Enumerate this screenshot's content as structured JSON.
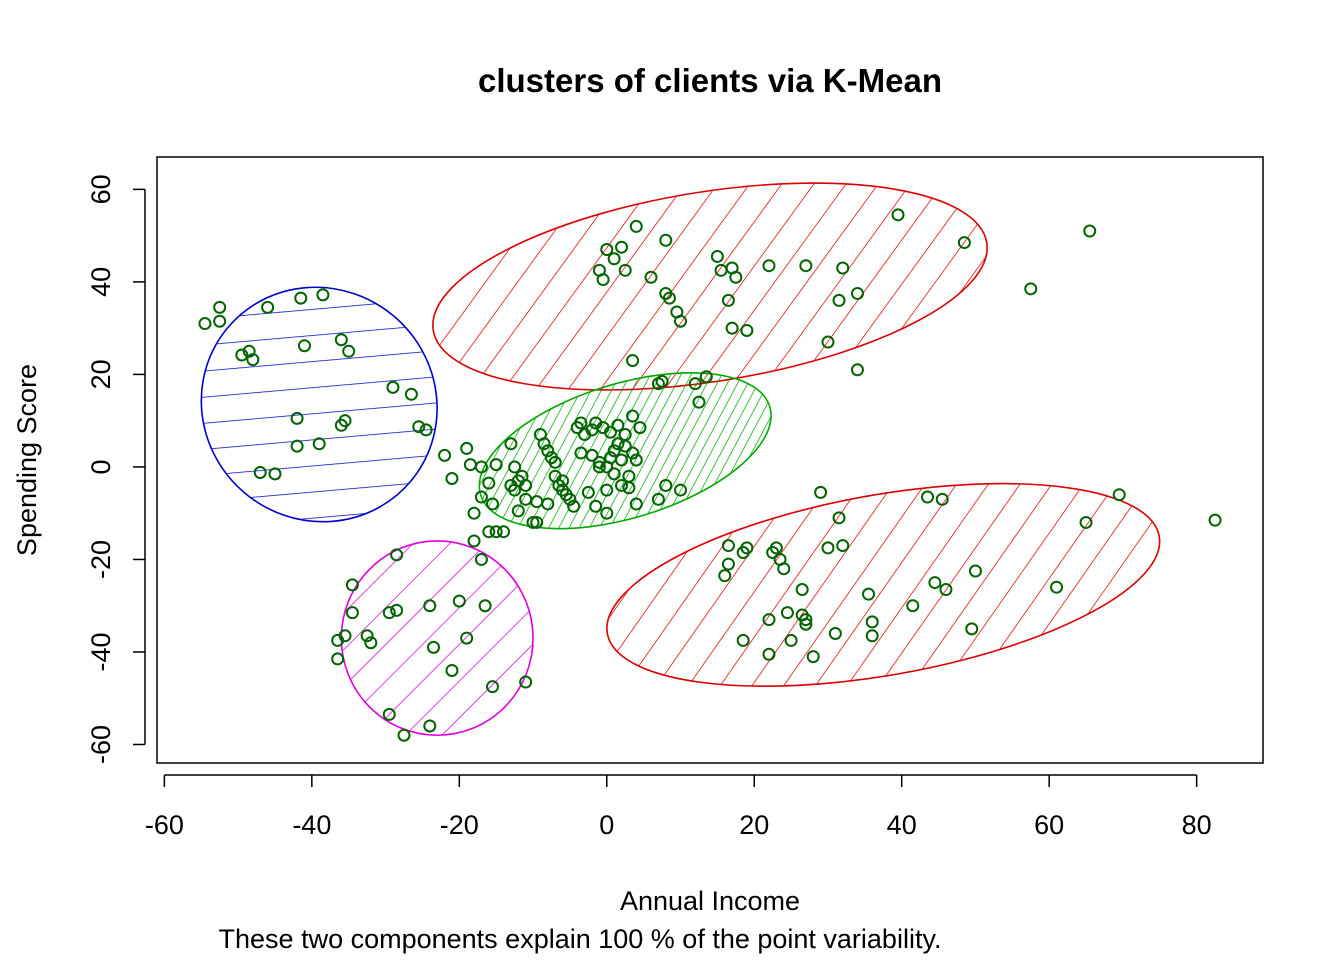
{
  "chart_data": {
    "type": "scatter",
    "title": "clusters of clients via K-Mean",
    "xlabel": "Annual Income",
    "ylabel": "Spending Score",
    "subtitle": "These two components explain 100 % of the point variability.",
    "xlim": [
      -61,
      89
    ],
    "ylim": [
      -64,
      67
    ],
    "x_ticks": [
      -60,
      -40,
      -20,
      0,
      20,
      40,
      60,
      80
    ],
    "y_ticks": [
      -60,
      -40,
      -20,
      0,
      20,
      40,
      60
    ],
    "x_tick_labels": [
      "-60",
      "-40",
      "-20",
      "0",
      "20",
      "40",
      "60",
      "80"
    ],
    "y_tick_labels": [
      "-60",
      "-40",
      "-20",
      "0",
      "20",
      "40",
      "60"
    ],
    "grid": false,
    "legend": "none",
    "point_color": "#006400",
    "clusters": [
      {
        "color": "#0000cc",
        "center": [
          -39,
          13.5
        ],
        "rx": 16.2,
        "ry": 25,
        "angle_deg": -40,
        "hatch": "wide"
      },
      {
        "color": "#dd0000",
        "center": [
          14,
          39
        ],
        "rx": 38,
        "ry": 20.5,
        "angle_deg": 9,
        "hatch": "wide"
      },
      {
        "color": "#00aa00",
        "center": [
          2.5,
          3.5
        ],
        "rx": 20.5,
        "ry": 14.5,
        "angle_deg": 17,
        "hatch": "dense"
      },
      {
        "color": "#dd00dd",
        "center": [
          -23,
          -37
        ],
        "rx": 13,
        "ry": 21,
        "angle_deg": 0,
        "hatch": "wide"
      },
      {
        "color": "#dd0000",
        "center": [
          37.5,
          -25.5
        ],
        "rx": 38,
        "ry": 19.5,
        "angle_deg": 10,
        "hatch": "wide"
      }
    ],
    "points": [
      [
        -54.5,
        31
      ],
      [
        -52.5,
        34.5
      ],
      [
        -52.5,
        31.5
      ],
      [
        -49.5,
        24.2
      ],
      [
        -48.5,
        25
      ],
      [
        -48,
        23.2
      ],
      [
        -46,
        34.5
      ],
      [
        -41.5,
        36.5
      ],
      [
        -41,
        26.2
      ],
      [
        -38.5,
        37.2
      ],
      [
        -36,
        27.5
      ],
      [
        -35,
        25
      ],
      [
        -29,
        17.2
      ],
      [
        -26.5,
        15.7
      ],
      [
        -25.5,
        8.7
      ],
      [
        -24.5,
        8
      ],
      [
        -36,
        9
      ],
      [
        -35.5,
        10
      ],
      [
        -39,
        5
      ],
      [
        -42,
        4.5
      ],
      [
        -42,
        10.5
      ],
      [
        -47,
        -1.2
      ],
      [
        -45,
        -1.5
      ],
      [
        -1,
        42.5
      ],
      [
        -0.5,
        40.5
      ],
      [
        0,
        47
      ],
      [
        1,
        45
      ],
      [
        2,
        47.5
      ],
      [
        2.5,
        42.5
      ],
      [
        4,
        52
      ],
      [
        6,
        41
      ],
      [
        8,
        49
      ],
      [
        8,
        37.5
      ],
      [
        8.5,
        36.5
      ],
      [
        9.5,
        33.5
      ],
      [
        10,
        31.5
      ],
      [
        3.5,
        23
      ],
      [
        12,
        18
      ],
      [
        13.5,
        19.5
      ],
      [
        12.5,
        14
      ],
      [
        15,
        45.5
      ],
      [
        15.5,
        42.5
      ],
      [
        17,
        43
      ],
      [
        17.5,
        41
      ],
      [
        16.5,
        36
      ],
      [
        17,
        30
      ],
      [
        19,
        29.5
      ],
      [
        22,
        43.5
      ],
      [
        27,
        43.5
      ],
      [
        32,
        43
      ],
      [
        31.5,
        36
      ],
      [
        34,
        37.5
      ],
      [
        30,
        27
      ],
      [
        34,
        21
      ],
      [
        39.5,
        54.5
      ],
      [
        48.5,
        48.5
      ],
      [
        57.5,
        38.5
      ],
      [
        65.5,
        51
      ],
      [
        -22,
        2.5
      ],
      [
        -19,
        4
      ],
      [
        -21,
        -2.5
      ],
      [
        -18.5,
        0.5
      ],
      [
        -18,
        -10
      ],
      [
        -17,
        -6.5
      ],
      [
        -17,
        0
      ],
      [
        -16,
        -3.5
      ],
      [
        -15.5,
        -8
      ],
      [
        -15,
        0.5
      ],
      [
        -15,
        -14
      ],
      [
        -14,
        -14
      ],
      [
        -13,
        5
      ],
      [
        -13,
        -4
      ],
      [
        -12.5,
        0
      ],
      [
        -12.5,
        -5
      ],
      [
        -12,
        -9.5
      ],
      [
        -12,
        -3
      ],
      [
        -11.5,
        -2
      ],
      [
        -11,
        -4
      ],
      [
        -11,
        -7
      ],
      [
        -10,
        -12
      ],
      [
        -9.5,
        -7.5
      ],
      [
        -9.5,
        -12
      ],
      [
        -9,
        7
      ],
      [
        -8.5,
        5
      ],
      [
        -8,
        3.5
      ],
      [
        -8,
        -8
      ],
      [
        -7.5,
        2
      ],
      [
        -7,
        1
      ],
      [
        -7,
        -2
      ],
      [
        -6.5,
        -4
      ],
      [
        -6,
        -3
      ],
      [
        -6,
        -5
      ],
      [
        -5.5,
        -6
      ],
      [
        -5,
        -7
      ],
      [
        -4.5,
        -8.5
      ],
      [
        -4,
        8.5
      ],
      [
        -3.5,
        9.5
      ],
      [
        -3.5,
        3
      ],
      [
        -3,
        7
      ],
      [
        -2.5,
        -5.5
      ],
      [
        -2,
        8
      ],
      [
        -2,
        2.5
      ],
      [
        -1.5,
        9.5
      ],
      [
        -1.5,
        -8.5
      ],
      [
        -1,
        1
      ],
      [
        -1,
        0
      ],
      [
        -0.5,
        8.5
      ],
      [
        0,
        -5
      ],
      [
        0,
        -10
      ],
      [
        0,
        0
      ],
      [
        0.5,
        7.5
      ],
      [
        0.5,
        2
      ],
      [
        1,
        3.5
      ],
      [
        1,
        -1.5
      ],
      [
        1.5,
        5
      ],
      [
        1.5,
        9
      ],
      [
        2,
        1.5
      ],
      [
        2,
        -4
      ],
      [
        2.5,
        7
      ],
      [
        2.5,
        4.5
      ],
      [
        3,
        -2
      ],
      [
        3,
        -4.5
      ],
      [
        3.5,
        11
      ],
      [
        3.5,
        3
      ],
      [
        4,
        -8
      ],
      [
        4,
        1.5
      ],
      [
        4.5,
        8.5
      ],
      [
        7,
        18
      ],
      [
        7.5,
        18.5
      ],
      [
        7,
        -7
      ],
      [
        8,
        -4
      ],
      [
        10,
        -5
      ],
      [
        -16,
        -14
      ],
      [
        -18,
        -16
      ],
      [
        -34.5,
        -25.5
      ],
      [
        -34.5,
        -31.5
      ],
      [
        -35.5,
        -36.5
      ],
      [
        -36.5,
        -37.5
      ],
      [
        -36.5,
        -41.5
      ],
      [
        -32.5,
        -36.5
      ],
      [
        -32,
        -38
      ],
      [
        -29.5,
        -31.5
      ],
      [
        -28.5,
        -31
      ],
      [
        -28.5,
        -19
      ],
      [
        -24,
        -30
      ],
      [
        -23.5,
        -39
      ],
      [
        -21,
        -44
      ],
      [
        -20,
        -29
      ],
      [
        -19,
        -37
      ],
      [
        -17,
        -20
      ],
      [
        -16.5,
        -30
      ],
      [
        -15.5,
        -47.5
      ],
      [
        -11,
        -46.5
      ],
      [
        -24,
        -56
      ],
      [
        -27.5,
        -58
      ],
      [
        -29.5,
        -53.5
      ],
      [
        16.5,
        -17
      ],
      [
        16.5,
        -21
      ],
      [
        16,
        -23.5
      ],
      [
        18.5,
        -18.5
      ],
      [
        19,
        -17.5
      ],
      [
        18.5,
        -37.5
      ],
      [
        22,
        -33
      ],
      [
        22.5,
        -18.5
      ],
      [
        23,
        -17.5
      ],
      [
        23.5,
        -20
      ],
      [
        24,
        -22
      ],
      [
        24.5,
        -31.5
      ],
      [
        25,
        -37.5
      ],
      [
        26.5,
        -26.5
      ],
      [
        26.5,
        -32
      ],
      [
        27,
        -33
      ],
      [
        27,
        -34
      ],
      [
        28,
        -41
      ],
      [
        22,
        -40.5
      ],
      [
        29,
        -5.5
      ],
      [
        31.5,
        -11
      ],
      [
        31,
        -36
      ],
      [
        30,
        -17.5
      ],
      [
        32,
        -17
      ],
      [
        35.5,
        -27.5
      ],
      [
        36,
        -33.5
      ],
      [
        36,
        -36.5
      ],
      [
        41.5,
        -30
      ],
      [
        43.5,
        -6.5
      ],
      [
        44.5,
        -25
      ],
      [
        45.5,
        -7
      ],
      [
        46,
        -26.5
      ],
      [
        49.5,
        -35
      ],
      [
        50,
        -22.5
      ],
      [
        61,
        -26
      ],
      [
        65,
        -12
      ],
      [
        69.5,
        -6
      ],
      [
        82.5,
        -11.5
      ]
    ]
  }
}
